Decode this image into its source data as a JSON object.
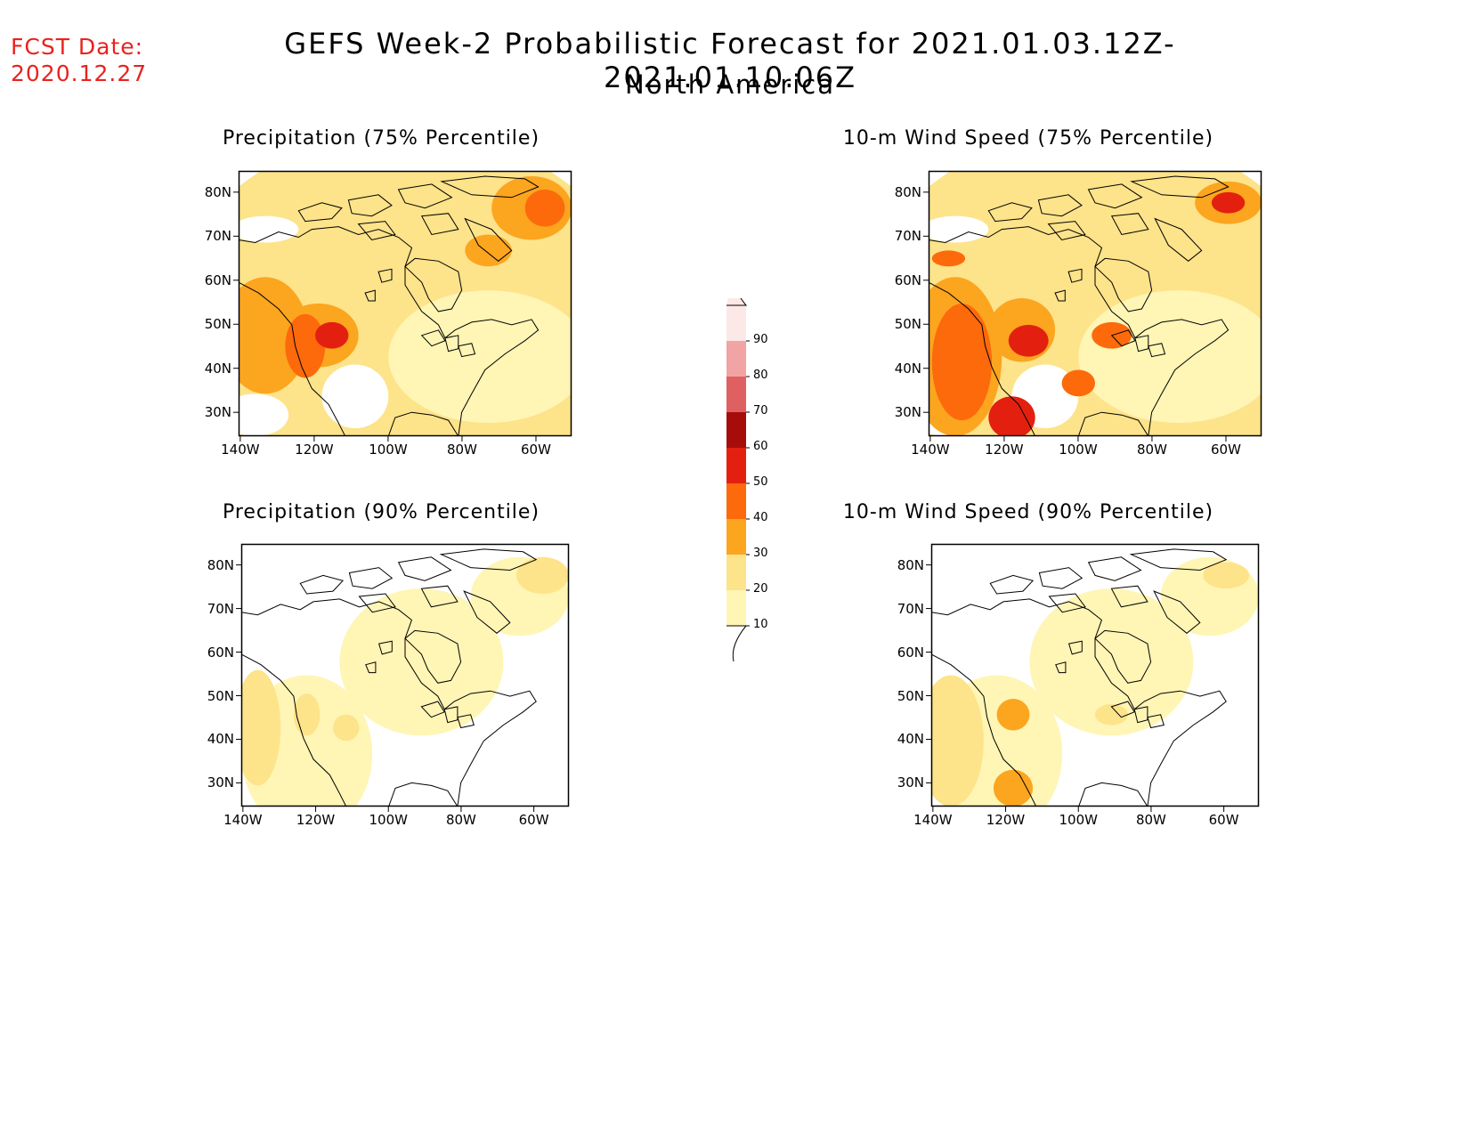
{
  "header": {
    "fcst_label": "FCST Date:",
    "fcst_date": "2020.12.27",
    "title": "GEFS Week-2 Probabilistic Forecast for 2021.01.03.12Z-2021.01.10.06Z",
    "region": "North America"
  },
  "colors": {
    "c10": "#fff5b5",
    "c20": "#fde38a",
    "c30": "#fca51f",
    "c40": "#fc6a0c",
    "c50": "#e3200f",
    "c60": "#a60d0a",
    "c70": "#df6060",
    "c80": "#f2a3a3",
    "c90": "#fde8e8",
    "coast": "#000000"
  },
  "axes": {
    "lat_labels": [
      "80N",
      "70N",
      "60N",
      "50N",
      "40N",
      "30N"
    ],
    "lon_labels": [
      "140W",
      "120W",
      "100W",
      "80W",
      "60W"
    ]
  },
  "colorbar": {
    "ticks": [
      "90",
      "80",
      "70",
      "60",
      "50",
      "40",
      "30",
      "20",
      "10"
    ]
  },
  "panels": [
    {
      "id": "p75",
      "title": "Precipitation (75% Percentile)",
      "level": 2,
      "hot": "west"
    },
    {
      "id": "w75",
      "title": "10-m Wind Speed (75% Percentile)",
      "level": 2,
      "hot": "pacific"
    },
    {
      "id": "p90",
      "title": "Precipitation (90% Percentile)",
      "level": 1,
      "hot": "west"
    },
    {
      "id": "w90",
      "title": "10-m Wind Speed (90% Percentile)",
      "level": 1,
      "hot": "pacific"
    }
  ]
}
